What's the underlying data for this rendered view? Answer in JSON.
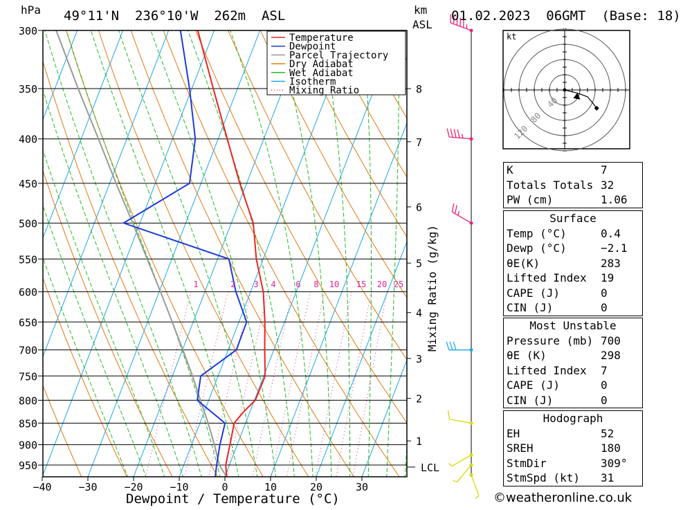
{
  "header": {
    "pressure_unit": "hPa",
    "location": "49°11'N  236°10'W  262m  ASL",
    "km_unit": "km",
    "asl_unit": "ASL",
    "datetime": "01.02.2023  06GMT  (Base: 18)"
  },
  "axes": {
    "xlabel": "Dewpoint / Temperature (°C)",
    "mixing_label": "Mixing Ratio (g/kg)",
    "x_ticks": [
      "−40",
      "−30",
      "−20",
      "−10",
      "0",
      "10",
      "20",
      "30"
    ],
    "p_ticks": [
      "300",
      "350",
      "400",
      "450",
      "500",
      "550",
      "600",
      "650",
      "700",
      "750",
      "800",
      "850",
      "900",
      "950"
    ],
    "km_ticks": [
      "8",
      "7",
      "6",
      "5",
      "4",
      "3",
      "2",
      "1"
    ],
    "lcl": "LCL",
    "mixing_ticks": [
      "1",
      "2",
      "3",
      "4",
      "6",
      "8",
      "10",
      "15",
      "20",
      "25"
    ]
  },
  "legend": {
    "items": [
      {
        "label": "Temperature",
        "color": "#ee2222",
        "style": "solid"
      },
      {
        "label": "Dewpoint",
        "color": "#1c3ad8",
        "style": "solid"
      },
      {
        "label": "Parcel Trajectory",
        "color": "#999999",
        "style": "solid"
      },
      {
        "label": "Dry Adiabat",
        "color": "#e07810",
        "style": "solid"
      },
      {
        "label": "Wet Adiabat",
        "color": "#22bb22",
        "style": "solid"
      },
      {
        "label": "Isotherm",
        "color": "#1aa7e8",
        "style": "solid"
      },
      {
        "label": "Mixing Ratio",
        "color": "#dd2299",
        "style": "dotted"
      }
    ]
  },
  "hodograph": {
    "unit": "kt",
    "ring_labels": [
      "40",
      "80",
      "120"
    ]
  },
  "indices": {
    "k_label": "K",
    "k_value": "7",
    "tt_label": "Totals Totals",
    "tt_value": "32",
    "pw_label": "PW (cm)",
    "pw_value": "1.06"
  },
  "surface": {
    "title": "Surface",
    "temp_label": "Temp (°C)",
    "temp_value": "0.4",
    "dewp_label": "Dewp (°C)",
    "dewp_value": "−2.1",
    "theta_label": "θE(K)",
    "theta_value": "283",
    "li_label": "Lifted Index",
    "li_value": "19",
    "cape_label": "CAPE (J)",
    "cape_value": "0",
    "cin_label": "CIN (J)",
    "cin_value": "0"
  },
  "most_unstable": {
    "title": "Most Unstable",
    "pressure_label": "Pressure (mb)",
    "pressure_value": "700",
    "theta_label": "θE (K)",
    "theta_value": "298",
    "li_label": "Lifted Index",
    "li_value": "7",
    "cape_label": "CAPE (J)",
    "cape_value": "0",
    "cin_label": "CIN (J)",
    "cin_value": "0"
  },
  "hodo_params": {
    "title": "Hodograph",
    "eh_label": "EH",
    "eh_value": "52",
    "sreh_label": "SREH",
    "sreh_value": "180",
    "stmdir_label": "StmDir",
    "stmdir_value": "309°",
    "stmspd_label": "StmSpd (kt)",
    "stmspd_value": "31"
  },
  "credit": "©weatheronline.co.uk",
  "chart_data": {
    "type": "line",
    "title": "49°11'N  236°10'W  262m  ASL",
    "xlabel": "Dewpoint / Temperature (°C)",
    "ylabel": "hPa",
    "xlim": [
      -40,
      40
    ],
    "ylim": [
      980,
      300
    ],
    "series": [
      {
        "name": "Temperature",
        "color": "#ee2222",
        "points": [
          [
            980,
            0.4
          ],
          [
            950,
            -0.8
          ],
          [
            900,
            -1.6
          ],
          [
            850,
            -2.5
          ],
          [
            825,
            -1.4
          ],
          [
            800,
            0.2
          ],
          [
            750,
            0.3
          ],
          [
            700,
            -2.0
          ],
          [
            650,
            -4.3
          ],
          [
            600,
            -7.2
          ],
          [
            550,
            -11.5
          ],
          [
            500,
            -15.2
          ],
          [
            450,
            -21.5
          ],
          [
            400,
            -28.0
          ],
          [
            350,
            -35.3
          ],
          [
            300,
            -43.6
          ]
        ]
      },
      {
        "name": "Dewpoint",
        "color": "#1c3ad8",
        "points": [
          [
            980,
            -2.1
          ],
          [
            950,
            -2.8
          ],
          [
            900,
            -3.8
          ],
          [
            850,
            -4.5
          ],
          [
            800,
            -12.5
          ],
          [
            750,
            -13.8
          ],
          [
            700,
            -8.2
          ],
          [
            650,
            -8.3
          ],
          [
            600,
            -13.2
          ],
          [
            550,
            -17.5
          ],
          [
            500,
            -43.6
          ],
          [
            450,
            -32.5
          ],
          [
            400,
            -35.0
          ],
          [
            350,
            -40.5
          ],
          [
            300,
            -47.4
          ]
        ]
      },
      {
        "name": "Parcel Trajectory",
        "color": "#999999",
        "points": [
          [
            980,
            0.4
          ],
          [
            950,
            -2.2
          ],
          [
            900,
            -5.0
          ],
          [
            850,
            -8.2
          ],
          [
            800,
            -11.8
          ],
          [
            750,
            -15.6
          ],
          [
            700,
            -19.9
          ],
          [
            650,
            -24.6
          ],
          [
            600,
            -29.7
          ],
          [
            550,
            -35.4
          ],
          [
            500,
            -41.6
          ],
          [
            450,
            -48.6
          ],
          [
            400,
            -56.2
          ],
          [
            350,
            -64.9
          ],
          [
            300,
            -74.6
          ]
        ]
      }
    ],
    "wind_barbs": [
      {
        "p": 300,
        "dir": 290,
        "spd": 55
      },
      {
        "p": 400,
        "dir": 275,
        "spd": 45
      },
      {
        "p": 500,
        "dir": 300,
        "spd": 25
      },
      {
        "p": 700,
        "dir": 270,
        "spd": 30
      },
      {
        "p": 850,
        "dir": 280,
        "spd": 10
      },
      {
        "p": 925,
        "dir": 240,
        "spd": 5
      },
      {
        "p": 950,
        "dir": 220,
        "spd": 5
      },
      {
        "p": 975,
        "dir": 160,
        "spd": 5
      }
    ],
    "hodograph_points": [
      [
        0,
        0
      ],
      [
        12,
        -3
      ],
      [
        20,
        -6
      ],
      [
        25,
        -12
      ],
      [
        28,
        -16
      ]
    ],
    "storm_motion": [
      10,
      -6
    ]
  }
}
